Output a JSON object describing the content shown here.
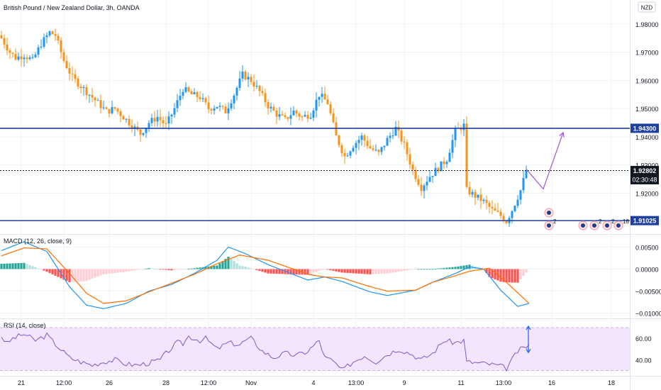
{
  "header": {
    "title": "British Pound / New Zealand Dollar, 3h, OANDA",
    "currency_button": "NZD"
  },
  "price_labels": {
    "resistance": "1.94300",
    "current": "1.92802",
    "countdown": "02:30:48",
    "support": "1.91025"
  },
  "event_badges": [
    {
      "name": "event-badge-1",
      "count": ""
    },
    {
      "name": "event-badge-2",
      "count": "2"
    },
    {
      "name": "event-badge-3",
      "count": ""
    },
    {
      "name": "event-badge-4",
      "count": "2"
    },
    {
      "name": "event-badge-5",
      "count": "2"
    },
    {
      "name": "event-badge-6",
      "count": "18"
    }
  ],
  "colors": {
    "up": "#2196f3",
    "down": "#f7931a",
    "level_line": "#1f3f9e",
    "macd_line": "#2196f3",
    "signal_line": "#ff6d00",
    "hist_pos_strong": "#26a69a",
    "hist_pos_weak": "#b2dfdb",
    "hist_neg_strong": "#ff5252",
    "hist_neg_weak": "#ffcdd2",
    "rsi_line": "#7e57c2",
    "projection": "#9c5bd6"
  },
  "chart_data": [
    {
      "type": "candlestick",
      "title": "British Pound / New Zealand Dollar, 3h, OANDA",
      "ylim": [
        1.9055,
        1.9885
      ],
      "yticks": [
        "1.98000",
        "1.97000",
        "1.96000",
        "1.95000",
        "1.94000",
        "1.93000",
        "1.92000"
      ],
      "xticks": [
        "21",
        "12:00",
        "26",
        "28",
        "12:00",
        "Nov",
        "4",
        "13:00",
        "9",
        "11",
        "13:00",
        "16",
        "18"
      ],
      "horizontal_levels": [
        1.943,
        1.91025
      ],
      "current_price": 1.92802,
      "close_anchors": [
        [
          0,
          1.975
        ],
        [
          3,
          1.97
        ],
        [
          5,
          1.968
        ],
        [
          8,
          1.969
        ],
        [
          11,
          1.967
        ],
        [
          14,
          1.973
        ],
        [
          17,
          1.977
        ],
        [
          19,
          1.976
        ],
        [
          22,
          1.967
        ],
        [
          25,
          1.961
        ],
        [
          28,
          1.958
        ],
        [
          31,
          1.955
        ],
        [
          34,
          1.952
        ],
        [
          37,
          1.949
        ],
        [
          40,
          1.95
        ],
        [
          43,
          1.947
        ],
        [
          46,
          1.944
        ],
        [
          49,
          1.941
        ],
        [
          52,
          1.945
        ],
        [
          55,
          1.947
        ],
        [
          58,
          1.944
        ],
        [
          61,
          1.95
        ],
        [
          64,
          1.957
        ],
        [
          67,
          1.955
        ],
        [
          70,
          1.954
        ],
        [
          73,
          1.95
        ],
        [
          76,
          1.951
        ],
        [
          79,
          1.949
        ],
        [
          82,
          1.955
        ],
        [
          85,
          1.962
        ],
        [
          88,
          1.96
        ],
        [
          91,
          1.956
        ],
        [
          94,
          1.951
        ],
        [
          97,
          1.948
        ],
        [
          100,
          1.946
        ],
        [
          103,
          1.949
        ],
        [
          106,
          1.947
        ],
        [
          109,
          1.948
        ],
        [
          112,
          1.955
        ],
        [
          115,
          1.952
        ],
        [
          118,
          1.94
        ],
        [
          121,
          1.933
        ],
        [
          124,
          1.937
        ],
        [
          127,
          1.94
        ],
        [
          130,
          1.936
        ],
        [
          133,
          1.934
        ],
        [
          136,
          1.939
        ],
        [
          139,
          1.943
        ],
        [
          142,
          1.937
        ],
        [
          145,
          1.928
        ],
        [
          148,
          1.922
        ],
        [
          151,
          1.926
        ],
        [
          154,
          1.929
        ],
        [
          157,
          1.932
        ],
        [
          160,
          1.942
        ],
        [
          163,
          1.944
        ],
        [
          164,
          1.921
        ],
        [
          167,
          1.919
        ],
        [
          170,
          1.917
        ],
        [
          173,
          1.914
        ],
        [
          176,
          1.912
        ],
        [
          178,
          1.91
        ],
        [
          180,
          1.914
        ],
        [
          183,
          1.921
        ],
        [
          185,
          1.928
        ]
      ],
      "projection": [
        [
          185,
          1.9285
        ],
        [
          191,
          1.9215
        ],
        [
          198,
          1.9415
        ]
      ]
    },
    {
      "type": "line",
      "name": "MACD (12, 26, close, 9)",
      "ylim": [
        -0.0112,
        0.0078
      ],
      "yticks": [
        "0.00500",
        "0.00000",
        "−0.00500",
        "−0.01000"
      ],
      "series": [
        {
          "name": "macd",
          "anchors": [
            [
              0,
              0.0042
            ],
            [
              8,
              0.0062
            ],
            [
              16,
              0.004
            ],
            [
              24,
              -0.004
            ],
            [
              30,
              -0.0082
            ],
            [
              36,
              -0.009
            ],
            [
              44,
              -0.0078
            ],
            [
              52,
              -0.005
            ],
            [
              60,
              -0.0035
            ],
            [
              68,
              -0.001
            ],
            [
              76,
              0.002
            ],
            [
              80,
              0.005
            ],
            [
              86,
              0.0035
            ],
            [
              94,
              0.001
            ],
            [
              102,
              -0.001
            ],
            [
              108,
              -0.0025
            ],
            [
              114,
              -0.0018
            ],
            [
              120,
              -0.0028
            ],
            [
              130,
              -0.0052
            ],
            [
              136,
              -0.006
            ],
            [
              146,
              -0.0048
            ],
            [
              152,
              -0.003
            ],
            [
              160,
              -0.001
            ],
            [
              165,
              0.0005
            ],
            [
              170,
              0.0
            ],
            [
              176,
              -0.0048
            ],
            [
              182,
              -0.0085
            ],
            [
              186,
              -0.0078
            ]
          ]
        },
        {
          "name": "signal",
          "anchors": [
            [
              0,
              0.003
            ],
            [
              8,
              0.0048
            ],
            [
              16,
              0.0046
            ],
            [
              24,
              -0.001
            ],
            [
              30,
              -0.0055
            ],
            [
              36,
              -0.0078
            ],
            [
              44,
              -0.0072
            ],
            [
              52,
              -0.0052
            ],
            [
              60,
              -0.0032
            ],
            [
              68,
              -0.0012
            ],
            [
              76,
              0.0012
            ],
            [
              84,
              0.0032
            ],
            [
              94,
              0.002
            ],
            [
              102,
              0.0002
            ],
            [
              108,
              -0.0012
            ],
            [
              114,
              -0.0018
            ],
            [
              120,
              -0.002
            ],
            [
              130,
              -0.004
            ],
            [
              136,
              -0.005
            ],
            [
              146,
              -0.0048
            ],
            [
              152,
              -0.003
            ],
            [
              160,
              -0.0015
            ],
            [
              165,
              -0.0005
            ],
            [
              172,
              0.0002
            ],
            [
              178,
              -0.003
            ],
            [
              186,
              -0.0078
            ]
          ]
        }
      ]
    },
    {
      "type": "line",
      "name": "RSI (14, close)",
      "ylim": [
        25,
        78
      ],
      "yticks": [
        "60.00",
        "40.00"
      ],
      "band": [
        30,
        70
      ],
      "anchors": [
        [
          0,
          62
        ],
        [
          2,
          55
        ],
        [
          4,
          60
        ],
        [
          8,
          64
        ],
        [
          12,
          58
        ],
        [
          16,
          63
        ],
        [
          20,
          52
        ],
        [
          24,
          42
        ],
        [
          28,
          38
        ],
        [
          32,
          35
        ],
        [
          36,
          38
        ],
        [
          40,
          40
        ],
        [
          44,
          36
        ],
        [
          48,
          35
        ],
        [
          52,
          37
        ],
        [
          56,
          40
        ],
        [
          58,
          46
        ],
        [
          62,
          56
        ],
        [
          64,
          55
        ],
        [
          66,
          62
        ],
        [
          70,
          58
        ],
        [
          72,
          60
        ],
        [
          76,
          50
        ],
        [
          80,
          56
        ],
        [
          84,
          54
        ],
        [
          86,
          58
        ],
        [
          88,
          60
        ],
        [
          92,
          48
        ],
        [
          96,
          42
        ],
        [
          100,
          46
        ],
        [
          104,
          44
        ],
        [
          108,
          48
        ],
        [
          112,
          58
        ],
        [
          114,
          42
        ],
        [
          116,
          40
        ],
        [
          118,
          36
        ],
        [
          120,
          30
        ],
        [
          124,
          38
        ],
        [
          128,
          44
        ],
        [
          132,
          38
        ],
        [
          136,
          45
        ],
        [
          140,
          50
        ],
        [
          144,
          46
        ],
        [
          148,
          40
        ],
        [
          152,
          46
        ],
        [
          156,
          58
        ],
        [
          160,
          56
        ],
        [
          163,
          58
        ],
        [
          164,
          38
        ],
        [
          168,
          37
        ],
        [
          172,
          36
        ],
        [
          176,
          34
        ],
        [
          178,
          32
        ],
        [
          182,
          48
        ],
        [
          186,
          54
        ]
      ],
      "marker_range": [
        48,
        70
      ]
    }
  ]
}
